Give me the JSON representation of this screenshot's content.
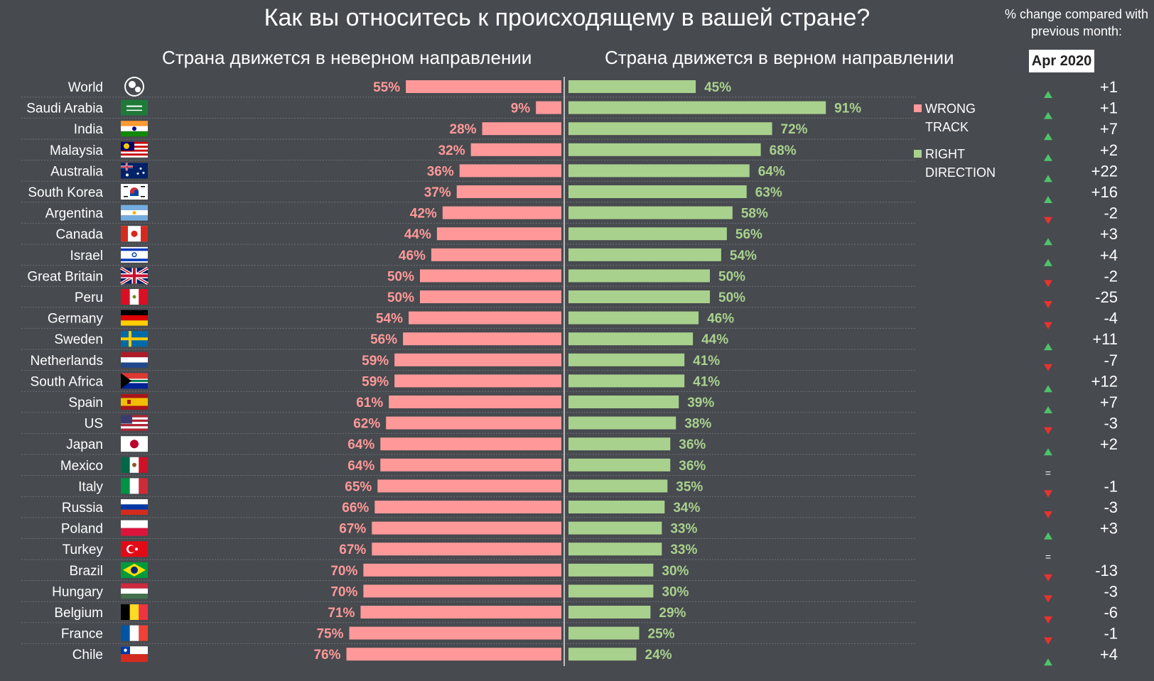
{
  "title": "Как вы относитесь к происходящему в вашей стране?",
  "subtitle_left": "Страна движется в неверном направлении",
  "subtitle_right": "Страна движется в верном направлении",
  "note": "% change compared with previous month:",
  "month": "Apr 2020",
  "legend": {
    "wrong_label": "WRONG TRACK",
    "right_label": "RIGHT DIRECTION",
    "wrong_color": "#ff9999",
    "right_color": "#a9d18e"
  },
  "colors": {
    "up": "#4fc26a",
    "down": "#e8332e",
    "background": "#474a4f"
  },
  "chart_data": {
    "type": "bar",
    "orientation": "horizontal-diverging",
    "categories": [
      "World",
      "Saudi Arabia",
      "India",
      "Malaysia",
      "Australia",
      "South Korea",
      "Argentina",
      "Canada",
      "Israel",
      "Great Britain",
      "Peru",
      "Germany",
      "Sweden",
      "Netherlands",
      "South Africa",
      "Spain",
      "US",
      "Japan",
      "Mexico",
      "Italy",
      "Russia",
      "Poland",
      "Turkey",
      "Brazil",
      "Hungary",
      "Belgium",
      "France",
      "Chile"
    ],
    "series": [
      {
        "name": "WRONG TRACK",
        "values": [
          55,
          9,
          28,
          32,
          36,
          37,
          42,
          44,
          46,
          50,
          50,
          54,
          56,
          59,
          59,
          61,
          62,
          64,
          64,
          65,
          66,
          67,
          67,
          70,
          70,
          71,
          75,
          76
        ]
      },
      {
        "name": "RIGHT DIRECTION",
        "values": [
          45,
          91,
          72,
          68,
          64,
          63,
          58,
          56,
          54,
          50,
          50,
          46,
          44,
          41,
          41,
          39,
          38,
          36,
          36,
          35,
          34,
          33,
          33,
          30,
          30,
          29,
          25,
          24
        ]
      }
    ],
    "value_labels": {
      "wrong": [
        "55%",
        "9%",
        "28%",
        "32%",
        "36%",
        "37%",
        "42%",
        "44%",
        "46%",
        "50%",
        "50%",
        "54%",
        "56%",
        "59%",
        "59%",
        "61%",
        "62%",
        "64%",
        "64%",
        "65%",
        "66%",
        "67%",
        "67%",
        "70%",
        "70%",
        "71%",
        "75%",
        "76%"
      ],
      "right": [
        "45%",
        "91%",
        "72%",
        "68%",
        "64%",
        "63%",
        "58%",
        "56%",
        "54%",
        "50%",
        "50%",
        "46%",
        "44%",
        "41%",
        "41%",
        "39%",
        "38%",
        "36%",
        "36%",
        "35%",
        "34%",
        "33%",
        "33%",
        "30%",
        "30%",
        "29%",
        "25%",
        "24%"
      ]
    },
    "change": {
      "labels": [
        "+1",
        "+1",
        "+7",
        "+2",
        "+22",
        "+16",
        "-2",
        "+3",
        "+4",
        "-2",
        "-25",
        "-4",
        "+11",
        "-7",
        "+12",
        "+7",
        "-3",
        "+2",
        "=",
        "-1",
        "-3",
        "+3",
        "=",
        "-13",
        "-3",
        "-6",
        "-1",
        "+4"
      ],
      "direction": [
        "up",
        "up",
        "up",
        "up",
        "up",
        "up",
        "down",
        "up",
        "up",
        "down",
        "down",
        "down",
        "up",
        "down",
        "up",
        "up",
        "down",
        "up",
        "same",
        "down",
        "down",
        "up",
        "same",
        "down",
        "down",
        "down",
        "down",
        "up"
      ]
    },
    "xlim": [
      0,
      100
    ],
    "grid": false,
    "legend_position": "right"
  }
}
